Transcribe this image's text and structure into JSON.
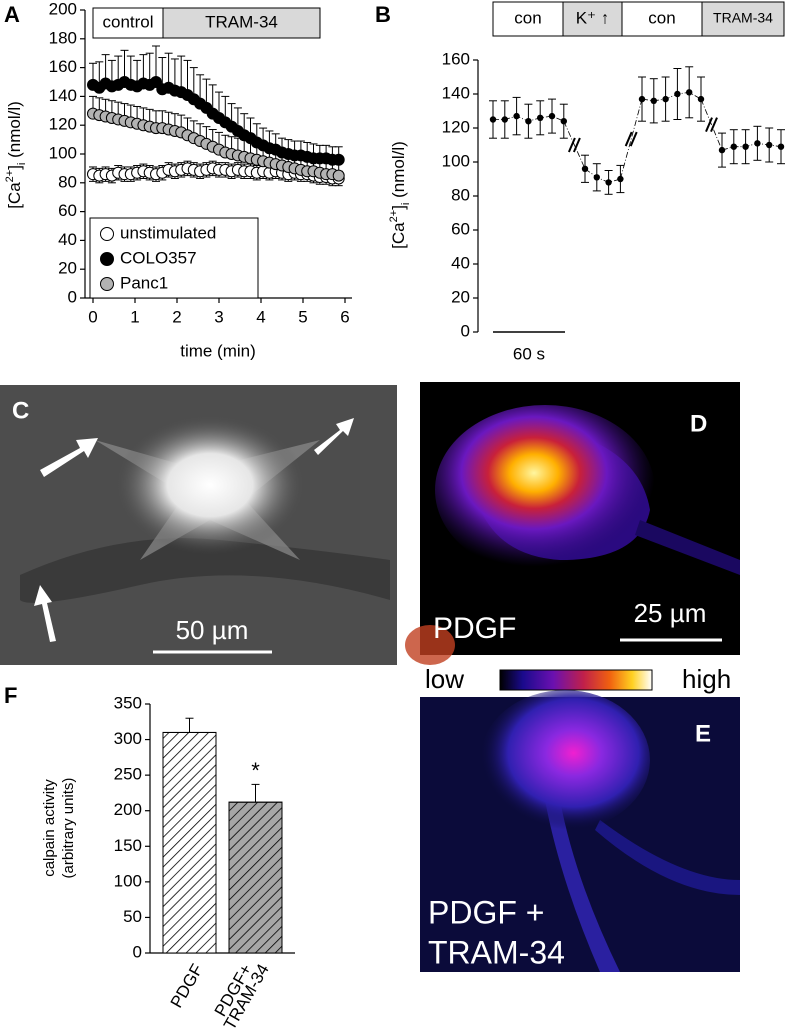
{
  "chart_data": [
    {
      "type": "line",
      "panel": "A",
      "phases": [
        "control",
        "TRAM-34"
      ],
      "xlabel": "time (min)",
      "ylabel": [
        "[Ca",
        "2+",
        "]",
        "i",
        " (nmol/l)"
      ],
      "x": [
        0,
        0.15,
        0.3,
        0.45,
        0.6,
        0.75,
        0.9,
        1.05,
        1.2,
        1.35,
        1.5,
        1.65,
        1.8,
        1.95,
        2.1,
        2.25,
        2.4,
        2.55,
        2.7,
        2.85,
        3,
        3.15,
        3.3,
        3.45,
        3.6,
        3.75,
        3.9,
        4.05,
        4.2,
        4.35,
        4.5,
        4.65,
        4.8,
        4.95,
        5.1,
        5.25,
        5.4,
        5.55,
        5.7,
        5.85
      ],
      "series": [
        {
          "name": "unstimulated",
          "color": "#ffffff",
          "values": [
            86,
            85,
            86,
            85,
            87,
            86,
            86,
            87,
            88,
            87,
            86,
            87,
            89,
            88,
            89,
            90,
            89,
            88,
            89,
            90,
            89,
            89,
            88,
            89,
            88,
            88,
            87,
            88,
            87,
            88,
            87,
            86,
            87,
            86,
            86,
            85,
            84,
            84,
            83,
            83
          ],
          "errors": [
            5,
            5,
            5,
            5,
            5,
            5,
            5,
            5,
            5,
            5,
            5,
            5,
            5,
            5,
            5,
            5,
            5,
            5,
            5,
            5,
            5,
            5,
            5,
            5,
            5,
            5,
            5,
            5,
            5,
            5,
            5,
            5,
            5,
            5,
            5,
            5,
            5,
            5,
            5,
            5
          ]
        },
        {
          "name": "COLO357",
          "color": "#000000",
          "values": [
            148,
            146,
            149,
            147,
            148,
            150,
            148,
            147,
            149,
            148,
            150,
            145,
            146,
            144,
            143,
            141,
            138,
            135,
            132,
            128,
            125,
            122,
            119,
            116,
            113,
            111,
            108,
            106,
            104,
            103,
            101,
            100,
            99,
            99,
            98,
            97,
            97,
            97,
            96,
            96
          ],
          "errors": [
            15,
            18,
            20,
            18,
            20,
            22,
            20,
            18,
            20,
            22,
            25,
            22,
            24,
            22,
            25,
            24,
            22,
            20,
            20,
            20,
            18,
            18,
            16,
            16,
            15,
            14,
            13,
            12,
            12,
            11,
            10,
            10,
            10,
            10,
            10,
            10,
            9,
            9,
            9,
            9
          ]
        },
        {
          "name": "Panc1",
          "color": "#b3b3b3",
          "values": [
            128,
            127,
            126,
            125,
            124,
            123,
            122,
            121,
            120,
            119,
            118,
            118,
            117,
            116,
            115,
            113,
            111,
            109,
            107,
            105,
            103,
            101,
            100,
            99,
            98,
            97,
            96,
            95,
            94,
            93,
            92,
            91,
            90,
            89,
            88,
            88,
            87,
            86,
            86,
            85
          ],
          "errors": [
            12,
            12,
            12,
            12,
            12,
            12,
            12,
            12,
            12,
            12,
            12,
            12,
            12,
            12,
            12,
            12,
            12,
            12,
            12,
            12,
            12,
            12,
            12,
            12,
            12,
            12,
            12,
            12,
            12,
            12,
            12,
            12,
            12,
            12,
            12,
            12,
            12,
            12,
            12,
            12
          ]
        }
      ],
      "xlim": [
        0,
        6
      ],
      "xticks": [
        0,
        1,
        2,
        3,
        4,
        5,
        6
      ],
      "ylim": [
        0,
        200
      ],
      "yticks": [
        0,
        20,
        40,
        60,
        80,
        100,
        120,
        140,
        160,
        180,
        200
      ]
    },
    {
      "type": "segments",
      "panel": "B",
      "conditions": [
        "con",
        "K⁺ ↑",
        "con",
        "TRAM-34"
      ],
      "ylabel": [
        "[Ca",
        "2+",
        "]",
        "i",
        " (nmol/l)"
      ],
      "scale_bar": "60 s",
      "segments": [
        {
          "values": [
            125,
            125,
            127,
            124,
            126,
            127,
            124
          ],
          "errors": [
            11,
            11,
            11,
            10,
            10,
            10,
            10
          ]
        },
        {
          "values": [
            96,
            91,
            88,
            90
          ],
          "errors": [
            8,
            8,
            7,
            8
          ]
        },
        {
          "values": [
            137,
            136,
            137,
            140,
            141,
            137
          ],
          "errors": [
            13,
            13,
            13,
            15,
            15,
            13
          ]
        },
        {
          "values": [
            107,
            109,
            109,
            111,
            110,
            109
          ],
          "errors": [
            10,
            10,
            10,
            10,
            10,
            10
          ]
        }
      ],
      "ylim": [
        0,
        160
      ],
      "yticks": [
        0,
        20,
        40,
        60,
        80,
        100,
        120,
        140,
        160
      ]
    },
    {
      "type": "bar",
      "panel": "F",
      "ylabel": [
        "calpain activity",
        "(arbitrary units)"
      ],
      "categories": [
        [
          "PDGF"
        ],
        [
          "PDGF+",
          "TRAM-34"
        ]
      ],
      "values": [
        310,
        212
      ],
      "errors": [
        20,
        25
      ],
      "colors": [
        "#ffffff",
        "#a6a6a6"
      ],
      "annotations": [
        "",
        "*"
      ],
      "ylim": [
        0,
        350
      ],
      "yticks": [
        0,
        50,
        100,
        150,
        200,
        250,
        300,
        350
      ]
    }
  ],
  "images": [
    {
      "letter": "C",
      "scale_bar": "50 µm"
    },
    {
      "letter": "D",
      "label": [
        "PDGF"
      ],
      "scale_bar": "25 µm"
    },
    {
      "letter": "E",
      "label": [
        "PDGF +",
        "TRAM-34"
      ]
    }
  ],
  "colorbar": {
    "low": "low",
    "high": "high"
  }
}
